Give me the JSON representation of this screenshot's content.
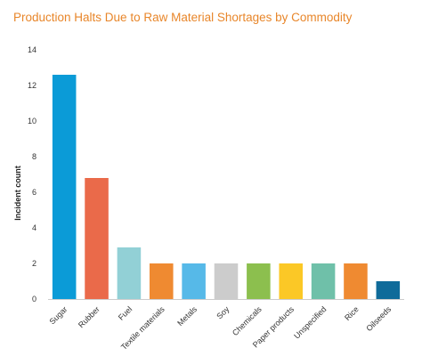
{
  "chart_data": {
    "type": "bar",
    "title": "Production Halts Due to Raw Material Shortages by Commodity",
    "xlabel": "",
    "ylabel": "Incident count",
    "ylim": [
      0,
      14
    ],
    "yticks": [
      0,
      2,
      4,
      6,
      8,
      10,
      12,
      14
    ],
    "grid": false,
    "legend": "none",
    "categories": [
      "Sugar",
      "Rubber",
      "Fuel",
      "Textile materials",
      "Metals",
      "Soy",
      "Chemicals",
      "Paper products",
      "Unspecified",
      "Rice",
      "Oilseeds"
    ],
    "values": [
      12.6,
      6.8,
      2.9,
      2,
      2,
      2,
      2,
      2,
      2,
      2,
      1
    ],
    "colors": [
      "#0b9bd7",
      "#ea6a4a",
      "#92d0d6",
      "#ef8a31",
      "#56b9e8",
      "#cccccc",
      "#8cbf4e",
      "#fbc826",
      "#6fc0a9",
      "#ef8a31",
      "#0f6b9a"
    ]
  }
}
